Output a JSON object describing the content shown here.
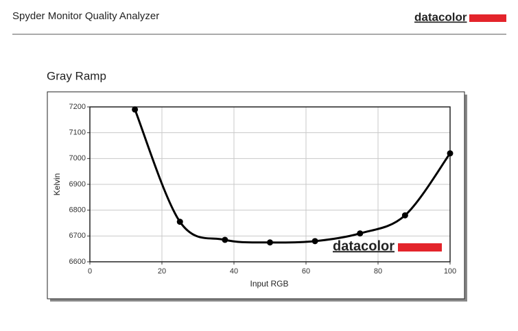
{
  "header": {
    "title": "Spyder Monitor Quality Analyzer",
    "logo": "datacolor"
  },
  "chart_data": {
    "type": "line",
    "title": "Gray Ramp",
    "x_label": "Input RGB",
    "y_label": "Kelvin",
    "x": [
      12.5,
      25,
      37.5,
      50,
      62.5,
      75,
      87.5,
      100
    ],
    "values": [
      7190,
      6755,
      6685,
      6675,
      6680,
      6710,
      6780,
      7020
    ],
    "color": "#000000",
    "xlim": [
      0,
      100
    ],
    "ylim": [
      6600,
      7200
    ],
    "xticks": [
      0,
      20,
      40,
      60,
      80,
      100
    ],
    "yticks": [
      6600,
      6700,
      6800,
      6900,
      7000,
      7100,
      7200
    ],
    "grid": true,
    "watermark": "datacolor"
  }
}
